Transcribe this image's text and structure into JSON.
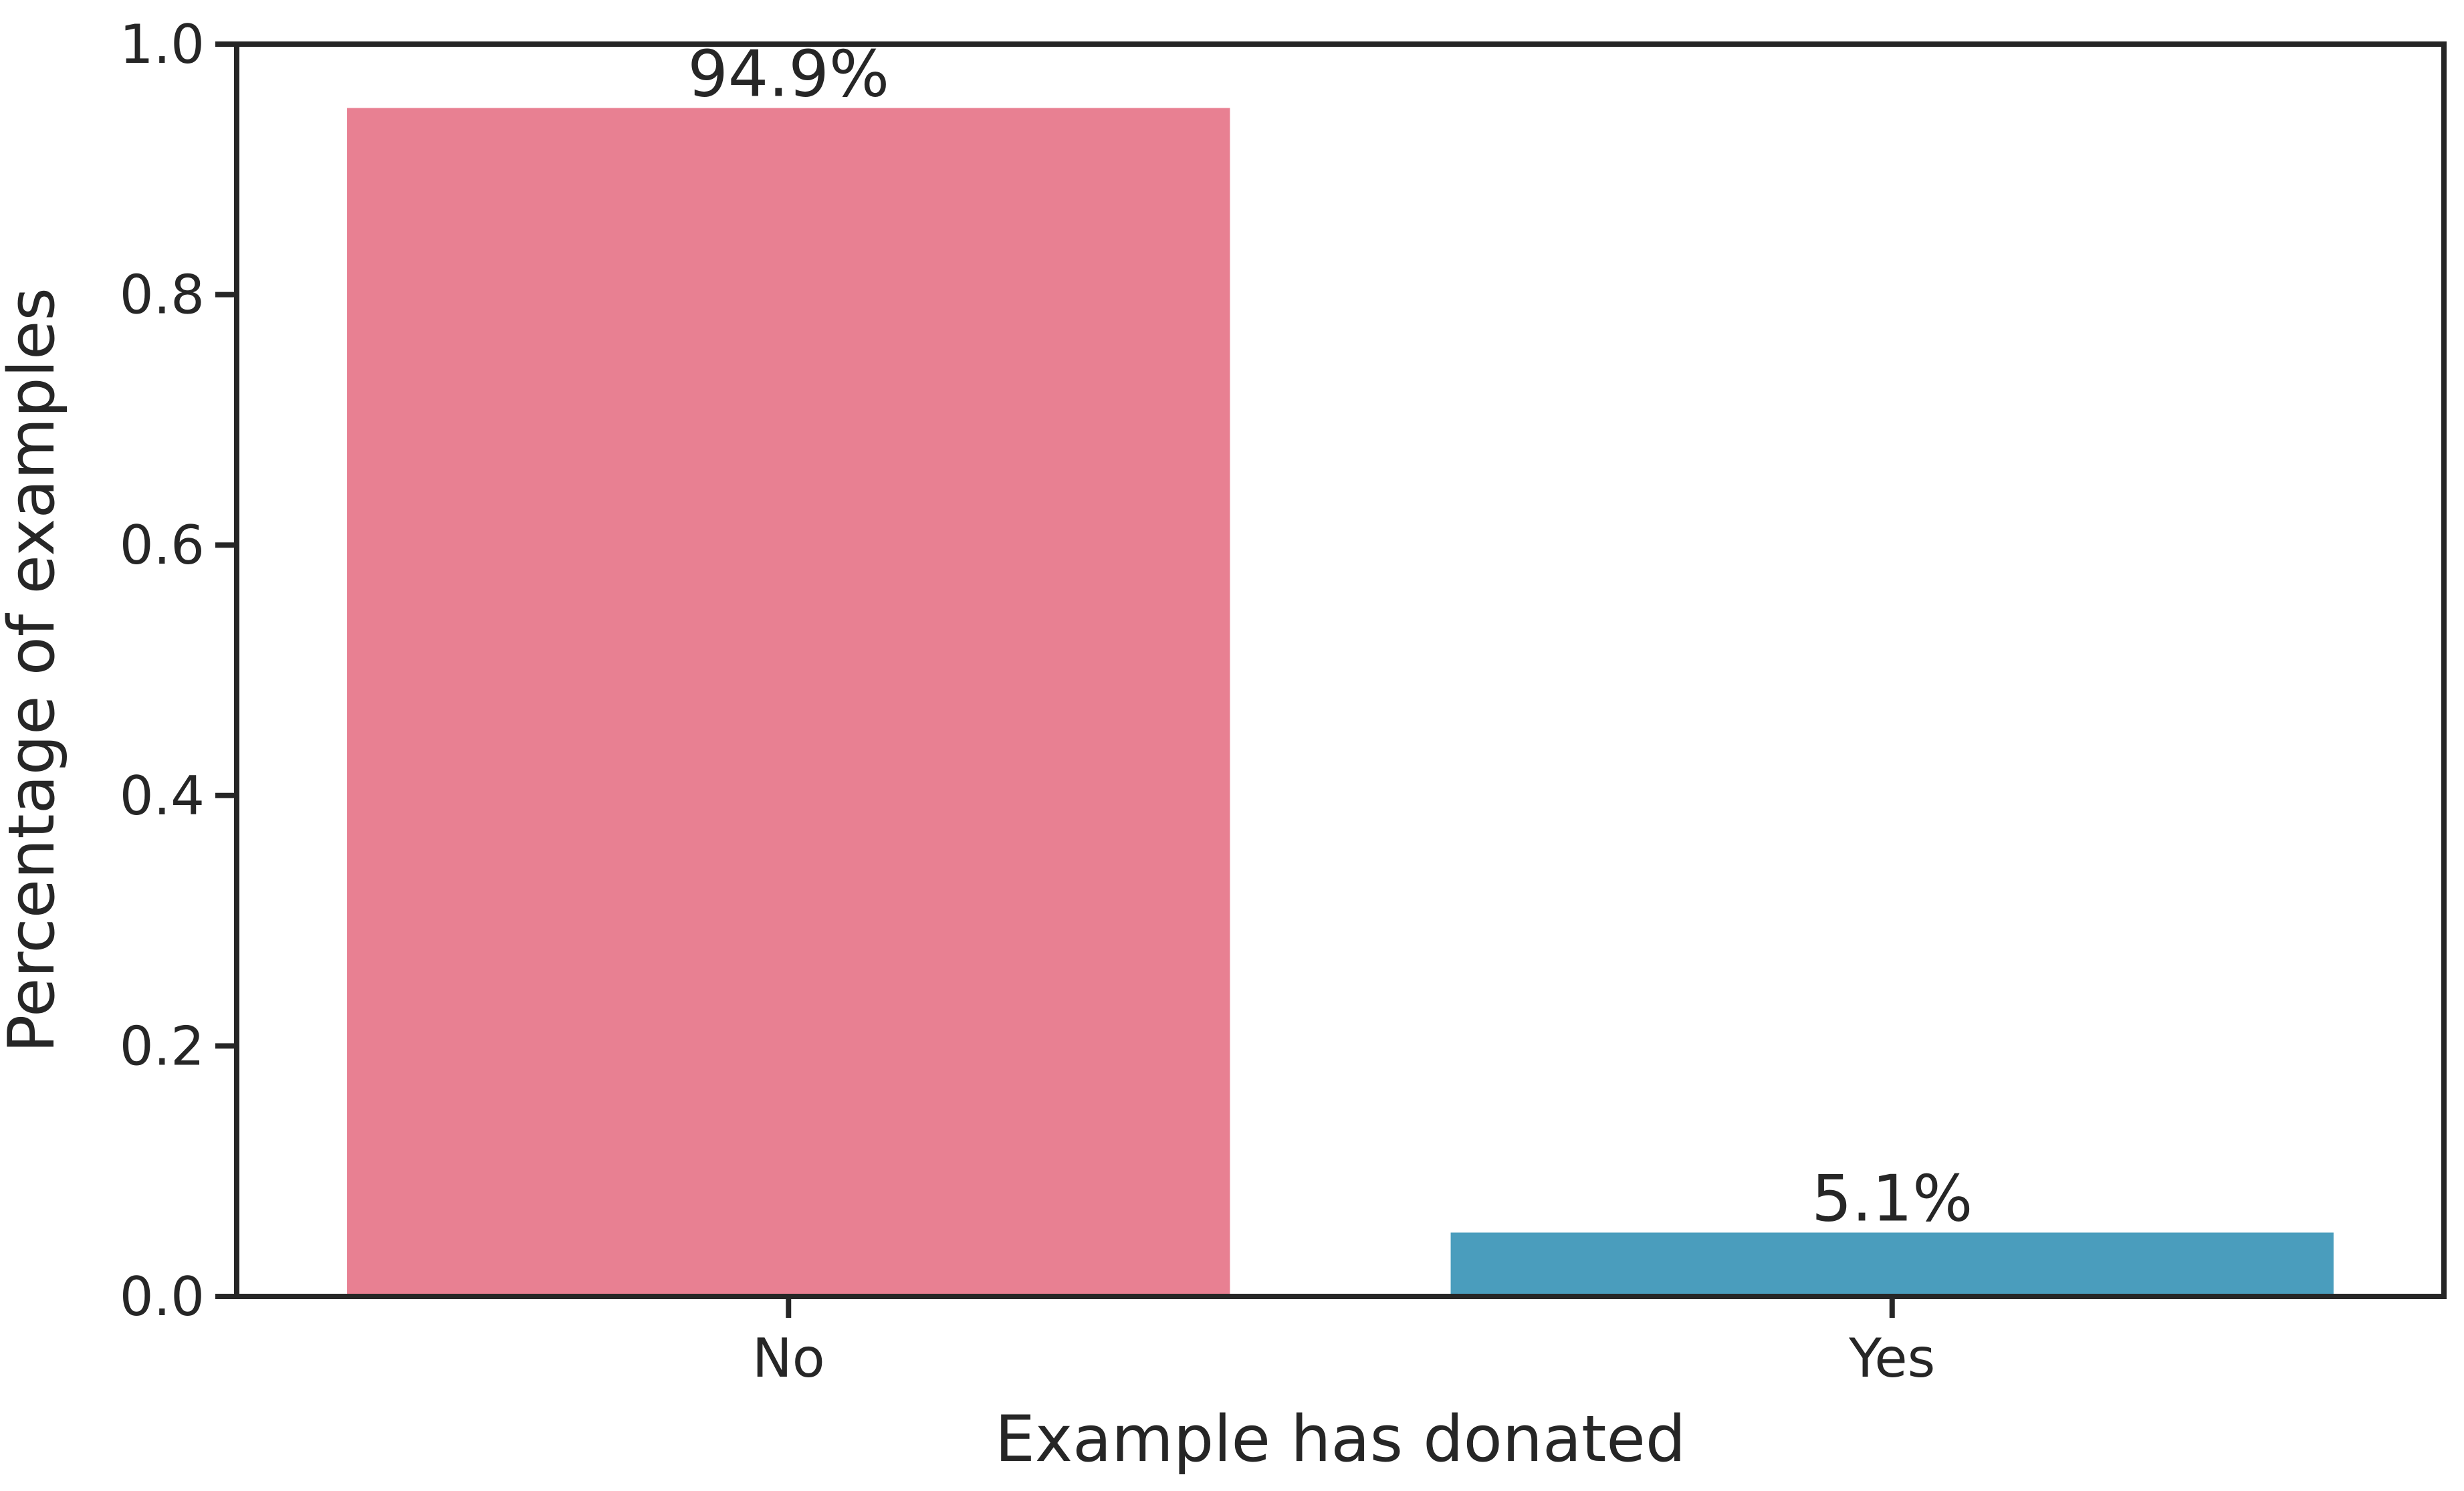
{
  "chart_data": {
    "type": "bar",
    "title": "",
    "xlabel": "Example has donated",
    "ylabel": "Percentage of examples",
    "categories": [
      "No",
      "Yes"
    ],
    "values": [
      0.949,
      0.051
    ],
    "value_labels": [
      "94.9%",
      "5.1%"
    ],
    "bar_colors": [
      "#e88092",
      "#4a9dbd"
    ],
    "ylim": [
      0,
      1.0
    ],
    "yticks": [
      0.0,
      0.2,
      0.4,
      0.6,
      0.8,
      1.0
    ],
    "ytick_labels": [
      "0.0",
      "0.2",
      "0.4",
      "0.6",
      "0.8",
      "1.0"
    ],
    "grid": false,
    "legend": "none"
  }
}
